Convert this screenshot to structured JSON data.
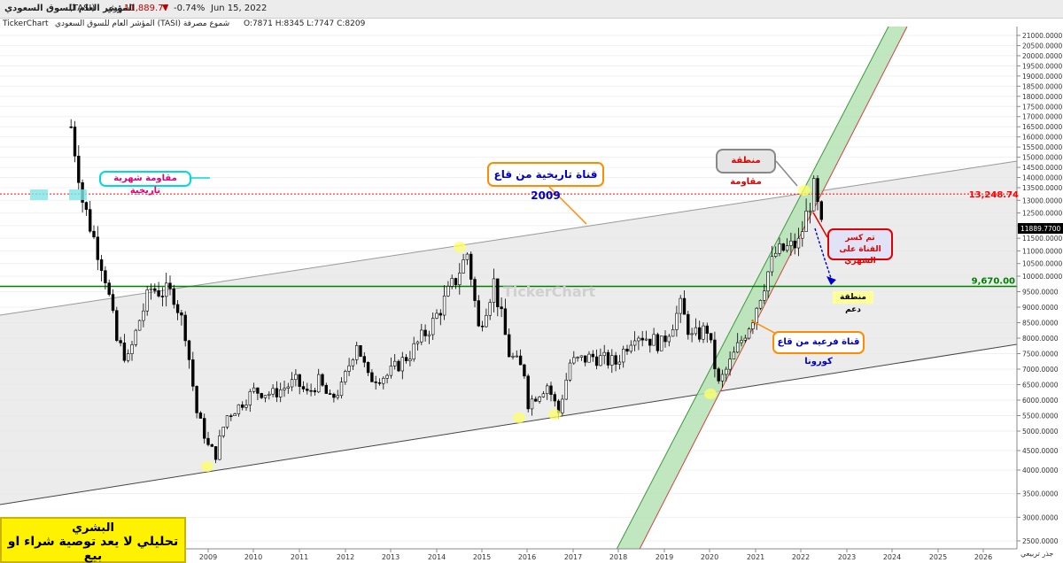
{
  "header": {
    "title": "المؤشر العام للسوق السعودي",
    "symbol": "(TASI)",
    "period": "شهري",
    "last": "11,889.77",
    "change_arrow": "▼",
    "change": "-0.74%",
    "date": "Jun 15, 2022"
  },
  "info": {
    "brand": "TickerChart",
    "instrument": "المؤشر العام للسوق السعودي (TASI) شموع مصرفة",
    "ohlc": "O:7871 H:8345 L:7747 C:8209"
  },
  "watermark": "TickerChart",
  "annotations": {
    "historic_resistance": "مقاومة شهرية تاريخية",
    "channel_2009": "قناة تاريخية من قاع 2009",
    "resistance_zone": "منطقة مقاومة",
    "broke_channel": [
      "تم كسر",
      "القناة على الشهري"
    ],
    "support_zone": "منطقة دعم",
    "corona_channel": "قناة فرعية من قاع كورونا"
  },
  "footer": {
    "author": "البشري",
    "disclaimer": "تحليلي لا يعد توصية شراء او بيع"
  },
  "axis_title": "جذر تربيعي",
  "colors": {
    "up": "#ffffff",
    "down": "#000000",
    "resistance_line": "#ff0000",
    "support_line": "#008000",
    "channel_fill": "#e6e6e6",
    "corona_fill": "#b5e3b5",
    "highlight": "#ffff66",
    "current_price_bg": "#000000"
  },
  "chart_data": {
    "type": "candlestick",
    "scale": "square-root",
    "x_ticks": [
      "2009",
      "2010",
      "2011",
      "2012",
      "2013",
      "2014",
      "2015",
      "2016",
      "2017",
      "2018",
      "2019",
      "2020",
      "2021",
      "2022",
      "2023",
      "2024",
      "2025",
      "2026"
    ],
    "y_ticks": [
      "21000.0000",
      "20500.0000",
      "20000.0000",
      "19500.0000",
      "19000.0000",
      "18500.0000",
      "18000.0000",
      "17500.0000",
      "17000.0000",
      "16500.0000",
      "16000.0000",
      "15500.0000",
      "15000.0000",
      "14500.0000",
      "14000.0000",
      "13500.0000",
      "13000.0000",
      "12500.0000",
      "12000.0000",
      "11500.0000",
      "11000.0000",
      "10500.0000",
      "10000.0000",
      "9500.0000",
      "9000.0000",
      "8500.0000",
      "8000.0000",
      "7500.0000",
      "7000.0000",
      "6500.0000",
      "6000.0000",
      "5500.0000",
      "5000.0000",
      "4500.0000",
      "4000.0000",
      "3500.0000",
      "3000.0000",
      "2500.0000"
    ],
    "ylim": [
      2400,
      21400
    ],
    "resistance_level": "13,248.74",
    "support_level": "9,670.00",
    "current_price": "11889.7700",
    "closes": [
      {
        "date": "2006-01",
        "close": 16500
      },
      {
        "date": "2006-04",
        "close": 13000
      },
      {
        "date": "2006-07",
        "close": 11500
      },
      {
        "date": "2006-10",
        "close": 10000
      },
      {
        "date": "2007-01",
        "close": 7900
      },
      {
        "date": "2007-04",
        "close": 7300
      },
      {
        "date": "2007-07",
        "close": 8600
      },
      {
        "date": "2007-10",
        "close": 9600
      },
      {
        "date": "2008-01",
        "close": 9500
      },
      {
        "date": "2008-04",
        "close": 9400
      },
      {
        "date": "2008-07",
        "close": 8200
      },
      {
        "date": "2008-10",
        "close": 5600
      },
      {
        "date": "2009-01",
        "close": 4600
      },
      {
        "date": "2009-03",
        "close": 4400
      },
      {
        "date": "2009-06",
        "close": 5500
      },
      {
        "date": "2009-09",
        "close": 5800
      },
      {
        "date": "2010-01",
        "close": 6300
      },
      {
        "date": "2010-06",
        "close": 6200
      },
      {
        "date": "2010-12",
        "close": 6600
      },
      {
        "date": "2011-03",
        "close": 6200
      },
      {
        "date": "2011-06",
        "close": 6600
      },
      {
        "date": "2011-09",
        "close": 6000
      },
      {
        "date": "2011-12",
        "close": 6400
      },
      {
        "date": "2012-04",
        "close": 7900
      },
      {
        "date": "2012-07",
        "close": 6700
      },
      {
        "date": "2012-12",
        "close": 6800
      },
      {
        "date": "2013-06",
        "close": 7500
      },
      {
        "date": "2013-12",
        "close": 8500
      },
      {
        "date": "2014-06",
        "close": 9900
      },
      {
        "date": "2014-09",
        "close": 10900
      },
      {
        "date": "2014-12",
        "close": 8300
      },
      {
        "date": "2015-04",
        "close": 9800
      },
      {
        "date": "2015-08",
        "close": 7500
      },
      {
        "date": "2015-12",
        "close": 6900
      },
      {
        "date": "2016-01",
        "close": 5900
      },
      {
        "date": "2016-06",
        "close": 6500
      },
      {
        "date": "2016-09",
        "close": 5600
      },
      {
        "date": "2016-12",
        "close": 7200
      },
      {
        "date": "2017-06",
        "close": 7400
      },
      {
        "date": "2017-12",
        "close": 7200
      },
      {
        "date": "2018-05",
        "close": 8200
      },
      {
        "date": "2018-12",
        "close": 7800
      },
      {
        "date": "2019-05",
        "close": 9000
      },
      {
        "date": "2019-08",
        "close": 8000
      },
      {
        "date": "2019-12",
        "close": 8300
      },
      {
        "date": "2020-03",
        "close": 6500
      },
      {
        "date": "2020-06",
        "close": 7200
      },
      {
        "date": "2020-12",
        "close": 8700
      },
      {
        "date": "2021-06",
        "close": 10900
      },
      {
        "date": "2021-12",
        "close": 11300
      },
      {
        "date": "2022-04",
        "close": 13500
      },
      {
        "date": "2022-06",
        "close": 11890
      }
    ]
  }
}
